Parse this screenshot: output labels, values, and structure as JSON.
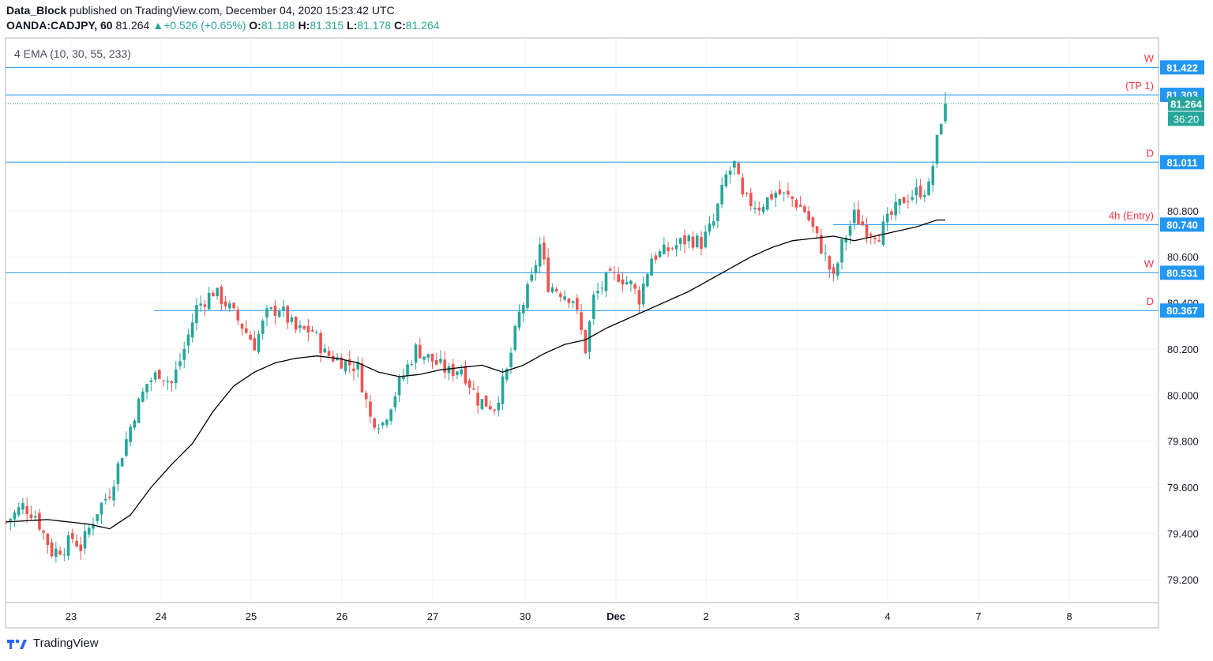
{
  "header": {
    "publisher": "Data_Block",
    "published_text": "published on TradingView.com, December 04, 2020 15:23:42 UTC",
    "symbol": "OANDA:CADJPY, 60",
    "last": "81.264",
    "change": "+0.526 (+0.65%)",
    "o_label": "O:",
    "o_val": "81.188",
    "h_label": "H:",
    "h_val": "81.315",
    "l_label": "L:",
    "l_val": "81.178",
    "c_label": "C:",
    "c_val": "81.264"
  },
  "indicator": "4 EMA (10, 30, 55, 233)",
  "footer": {
    "brand": "TradingView"
  },
  "colors": {
    "up": "#26a69a",
    "down": "#ef5350",
    "level": "#2196f3",
    "label_text": "#f23645",
    "ema": "#000000",
    "grid": "#f0f3fa"
  },
  "chart_data": {
    "type": "candlestick",
    "symbol": "CADJPY",
    "timeframe": "60",
    "y_range": [
      79.1,
      81.55
    ],
    "y_ticks": [
      79.2,
      79.4,
      79.6,
      79.8,
      80.0,
      80.2,
      80.4,
      80.6,
      80.8
    ],
    "y_tick_labels": [
      "79.200",
      "79.400",
      "79.600",
      "79.800",
      "80.000",
      "80.200",
      "80.400",
      "80.600",
      "80.800"
    ],
    "x_tick_labels": [
      "23",
      "24",
      "25",
      "26",
      "27",
      "30",
      "Dec",
      "2",
      "3",
      "4",
      "7",
      "8"
    ],
    "horizontal_levels": [
      {
        "label": "W",
        "price_label": "81.422",
        "value": 81.422,
        "from": "start"
      },
      {
        "label": "(TP 1)",
        "price_label": "81.303",
        "value": 81.303,
        "from": "start"
      },
      {
        "label": "D",
        "price_label": "81.011",
        "value": 81.011,
        "from": "start"
      },
      {
        "label": "4h (Entry)",
        "price_label": "80.740",
        "value": 80.74,
        "from": "Dec 3"
      },
      {
        "label": "W",
        "price_label": "80.531",
        "value": 80.531,
        "from": "start"
      },
      {
        "label": "D",
        "price_label": "80.367",
        "value": 80.367,
        "from": "Nov 24"
      }
    ],
    "last_price": {
      "price_label": "81.264",
      "countdown": "36:20",
      "value": 81.264
    },
    "candle_path": [
      [
        0,
        79.45
      ],
      [
        4,
        79.52
      ],
      [
        7,
        79.48
      ],
      [
        9,
        79.4
      ],
      [
        11,
        79.32
      ],
      [
        14,
        79.34
      ],
      [
        16,
        79.38
      ],
      [
        18,
        79.34
      ],
      [
        20,
        79.42
      ],
      [
        22,
        79.5
      ],
      [
        25,
        79.58
      ],
      [
        28,
        79.75
      ],
      [
        31,
        79.92
      ],
      [
        34,
        80.05
      ],
      [
        37,
        80.1
      ],
      [
        40,
        80.05
      ],
      [
        43,
        80.2
      ],
      [
        46,
        80.38
      ],
      [
        50,
        80.45
      ],
      [
        53,
        80.4
      ],
      [
        57,
        80.3
      ],
      [
        60,
        80.22
      ],
      [
        63,
        80.35
      ],
      [
        66,
        80.38
      ],
      [
        70,
        80.28
      ],
      [
        74,
        80.28
      ],
      [
        77,
        80.18
      ],
      [
        81,
        80.15
      ],
      [
        85,
        80.12
      ],
      [
        88,
        79.9
      ],
      [
        91,
        79.88
      ],
      [
        95,
        80.05
      ],
      [
        99,
        80.2
      ],
      [
        103,
        80.15
      ],
      [
        107,
        80.1
      ],
      [
        110,
        80.12
      ],
      [
        114,
        79.98
      ],
      [
        118,
        79.95
      ],
      [
        121,
        80.1
      ],
      [
        124,
        80.35
      ],
      [
        127,
        80.5
      ],
      [
        129,
        80.65
      ],
      [
        131,
        80.48
      ],
      [
        134,
        80.45
      ],
      [
        137,
        80.42
      ],
      [
        140,
        80.2
      ],
      [
        142,
        80.42
      ],
      [
        145,
        80.5
      ],
      [
        148,
        80.52
      ],
      [
        151,
        80.48
      ],
      [
        153,
        80.42
      ],
      [
        156,
        80.6
      ],
      [
        159,
        80.62
      ],
      [
        162,
        80.65
      ],
      [
        165,
        80.68
      ],
      [
        168,
        80.66
      ],
      [
        171,
        80.75
      ],
      [
        174,
        80.95
      ],
      [
        176,
        81.0
      ],
      [
        178,
        80.85
      ],
      [
        182,
        80.82
      ],
      [
        186,
        80.88
      ],
      [
        190,
        80.85
      ],
      [
        193,
        80.8
      ],
      [
        195,
        80.72
      ],
      [
        198,
        80.6
      ],
      [
        200,
        80.5
      ],
      [
        202,
        80.65
      ],
      [
        205,
        80.78
      ],
      [
        208,
        80.72
      ],
      [
        211,
        80.7
      ],
      [
        214,
        80.78
      ],
      [
        217,
        80.85
      ],
      [
        220,
        80.88
      ],
      [
        223,
        80.9
      ],
      [
        225,
        81.1
      ],
      [
        227,
        81.3
      ]
    ],
    "ema233_path": [
      [
        0,
        79.45
      ],
      [
        10,
        79.46
      ],
      [
        20,
        79.44
      ],
      [
        25,
        79.42
      ],
      [
        30,
        79.48
      ],
      [
        35,
        79.6
      ],
      [
        40,
        79.7
      ],
      [
        45,
        79.79
      ],
      [
        50,
        79.93
      ],
      [
        55,
        80.04
      ],
      [
        60,
        80.1
      ],
      [
        65,
        80.14
      ],
      [
        70,
        80.16
      ],
      [
        75,
        80.17
      ],
      [
        80,
        80.16
      ],
      [
        85,
        80.14
      ],
      [
        90,
        80.1
      ],
      [
        95,
        80.08
      ],
      [
        100,
        80.09
      ],
      [
        105,
        80.11
      ],
      [
        110,
        80.12
      ],
      [
        115,
        80.13
      ],
      [
        120,
        80.1
      ],
      [
        125,
        80.13
      ],
      [
        130,
        80.18
      ],
      [
        135,
        80.22
      ],
      [
        140,
        80.24
      ],
      [
        145,
        80.29
      ],
      [
        150,
        80.33
      ],
      [
        155,
        80.37
      ],
      [
        160,
        80.41
      ],
      [
        165,
        80.45
      ],
      [
        170,
        80.5
      ],
      [
        175,
        80.55
      ],
      [
        180,
        80.6
      ],
      [
        185,
        80.64
      ],
      [
        190,
        80.67
      ],
      [
        195,
        80.68
      ],
      [
        200,
        80.69
      ],
      [
        205,
        80.67
      ],
      [
        210,
        80.69
      ],
      [
        215,
        80.71
      ],
      [
        220,
        80.73
      ],
      [
        225,
        80.76
      ]
    ]
  }
}
